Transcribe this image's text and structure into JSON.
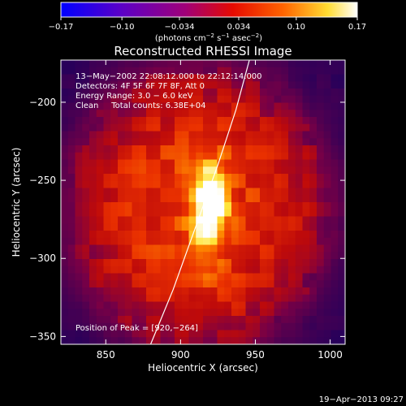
{
  "chart_data": {
    "type": "heatmap",
    "title": "Reconstructed RHESSI Image",
    "xlabel": "Heliocentric X (arcsec)",
    "ylabel": "Heliocentric Y (arcsec)",
    "xlim": [
      820,
      1010
    ],
    "ylim": [
      -355,
      -173
    ],
    "x_ticks": [
      850,
      900,
      950,
      1000
    ],
    "y_ticks": [
      -350,
      -300,
      -250,
      -200
    ],
    "x_tick_labels": [
      "850",
      "900",
      "950",
      "1000"
    ],
    "y_tick_labels": [
      "−350",
      "−300",
      "−250",
      "−200"
    ],
    "colorbar": {
      "range": [
        -0.17,
        0.17
      ],
      "ticks": [
        -0.17,
        -0.1,
        -0.034,
        0.034,
        0.1,
        0.17
      ],
      "tick_labels": [
        "−0.17",
        "−0.10",
        "−0.034",
        "0.034",
        "0.10",
        "0.17"
      ],
      "units_html": "(photons cm<tspan baseline-shift=\"super\" font-size=\"7\">−2</tspan> s<tspan baseline-shift=\"super\" font-size=\"7\">−1</tspan> asec<tspan baseline-shift=\"super\" font-size=\"7\">−2</tspan>)"
    },
    "annotations": [
      "13−May−2002 22:08:12.000 to 22:12:14.000",
      "Detectors: 4F 5F 6F 7F 8F, Att 0",
      "Energy Range: 3.0 − 6.0 keV",
      "Clean     Total counts: 6.38E+04"
    ],
    "peak_label": "Position of Peak = [920,−264]",
    "peak": {
      "x": 920,
      "y": -264
    },
    "limb_curve": [
      [
        880,
        -355
      ],
      [
        895,
        -320
      ],
      [
        910,
        -280
      ],
      [
        925,
        -240
      ],
      [
        937,
        -205
      ],
      [
        946,
        -173
      ]
    ]
  },
  "timestamp": "19−Apr−2013 09:27"
}
